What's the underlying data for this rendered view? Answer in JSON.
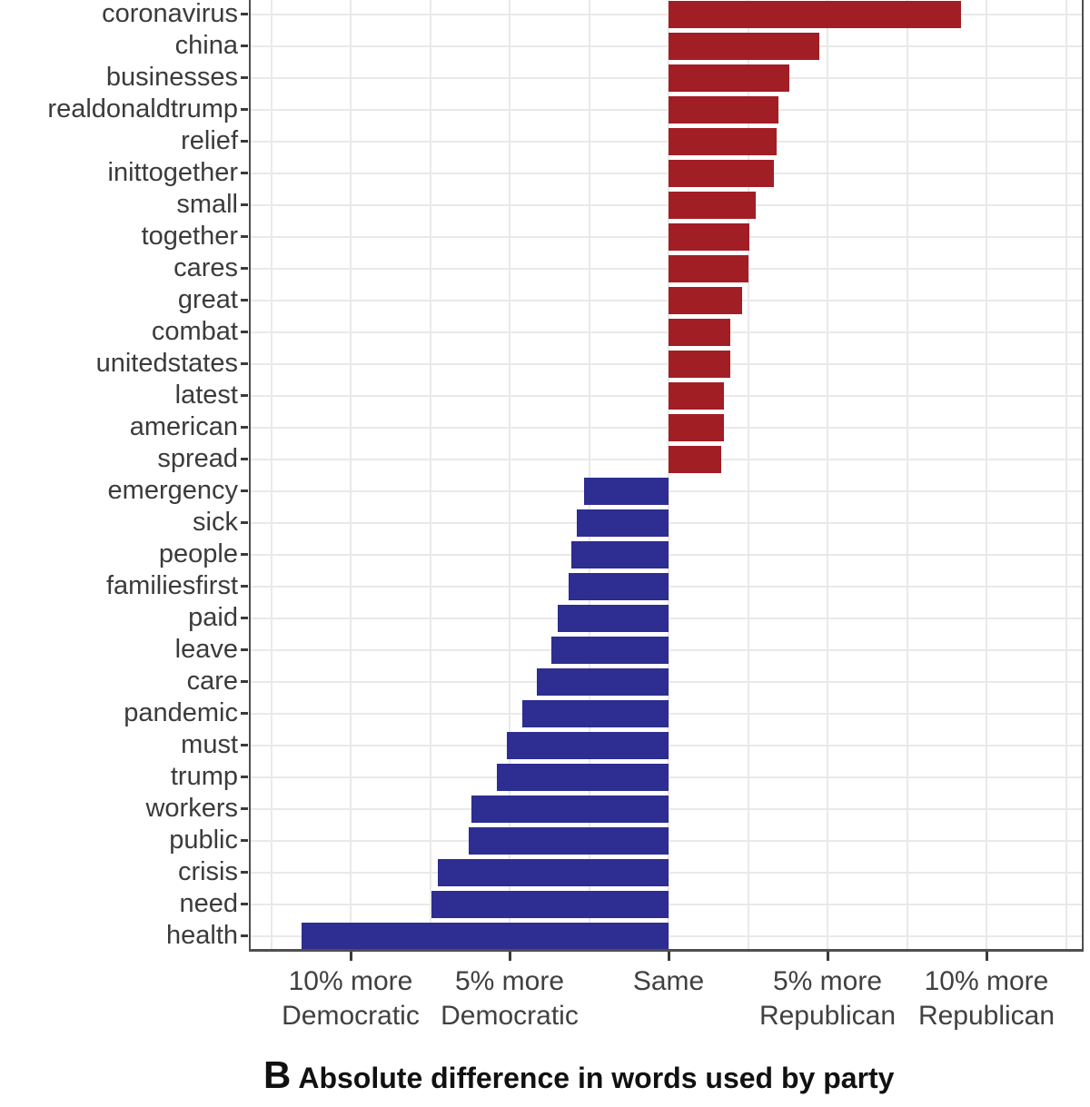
{
  "caption": {
    "label": "B",
    "text": "Absolute difference in words used by party"
  },
  "axis": {
    "x_major_ticks": [
      {
        "value": -10,
        "lines": [
          "10% more",
          "Democratic"
        ]
      },
      {
        "value": -5,
        "lines": [
          "5% more",
          "Democratic"
        ]
      },
      {
        "value": 0,
        "lines": [
          "Same"
        ]
      },
      {
        "value": 5,
        "lines": [
          "5% more",
          "Republican"
        ]
      },
      {
        "value": 10,
        "lines": [
          "10% more",
          "Republican"
        ]
      }
    ],
    "x_minor_ticks": [
      -12.5,
      -7.5,
      -2.5,
      2.5,
      7.5,
      12.5
    ],
    "xlim": [
      -13.2,
      13.1
    ]
  },
  "colors": {
    "republican_bar": "#a21e25",
    "democratic_bar": "#2d2d92",
    "grid": "#e9e9e9",
    "panel_border": "#4f4f4f",
    "tick": "#3a3a3a",
    "label_text": "#3b3b3b",
    "axis_text": "#404040",
    "caption_text": "#111111",
    "background": "#ffffff"
  },
  "chart_data": {
    "type": "bar",
    "orientation": "horizontal",
    "title": "",
    "xlabel": "",
    "ylabel": "",
    "legend": "none",
    "grid": "vertical major every 5 pct, minor every 2.5 pct; horizontal line at each category",
    "xlim": [
      -13.2,
      13.1
    ],
    "value_unit": "percentage-point difference in word usage; positive = more Republican, negative = more Democratic",
    "categories": [
      "coronavirus",
      "china",
      "businesses",
      "realdonaldtrump",
      "relief",
      "inittogether",
      "small",
      "together",
      "cares",
      "great",
      "combat",
      "unitedstates",
      "latest",
      "american",
      "spread",
      "emergency",
      "sick",
      "people",
      "familiesfirst",
      "paid",
      "leave",
      "care",
      "pandemic",
      "must",
      "trump",
      "workers",
      "public",
      "crisis",
      "need",
      "health"
    ],
    "values": [
      9.2,
      4.75,
      3.8,
      3.45,
      3.4,
      3.3,
      2.75,
      2.55,
      2.5,
      2.3,
      1.95,
      1.95,
      1.75,
      1.75,
      1.65,
      -2.65,
      -2.9,
      -3.05,
      -3.15,
      -3.5,
      -3.7,
      -4.15,
      -4.6,
      -5.1,
      -5.4,
      -6.2,
      -6.3,
      -7.25,
      -7.45,
      -11.55
    ],
    "series": [
      {
        "name": "More Republican",
        "color": "#a21e25"
      },
      {
        "name": "More Democratic",
        "color": "#2d2d92"
      }
    ]
  }
}
